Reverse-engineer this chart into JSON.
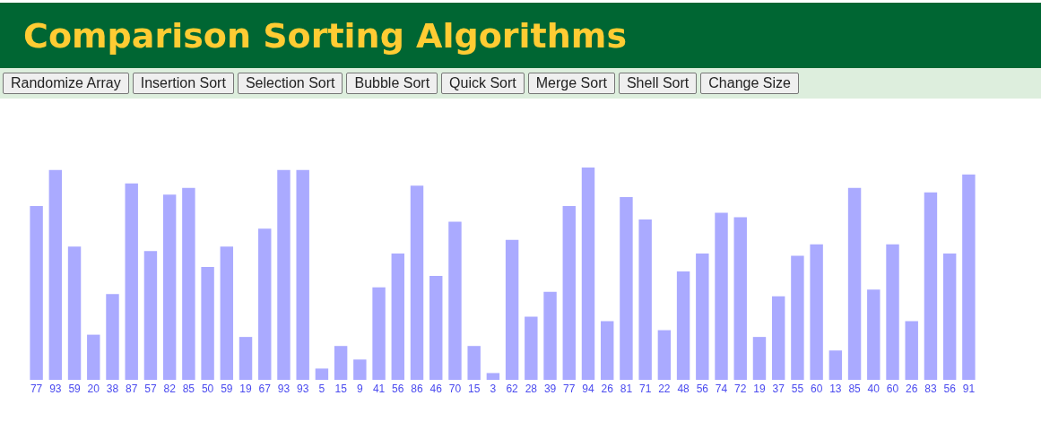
{
  "chart_data": {
    "type": "bar",
    "title": "Comparison Sorting Algorithms",
    "annotations": [
      "Randomize Array",
      "Insertion Sort",
      "Selection Sort",
      "Bubble Sort",
      "Quick Sort",
      "Merge Sort",
      "Shell Sort",
      "Change Size"
    ],
    "categories": [
      null,
      null,
      null,
      null,
      null,
      null,
      null,
      null,
      null,
      null,
      null,
      null,
      null,
      null,
      null,
      null,
      null,
      null,
      null,
      null,
      null,
      null,
      null,
      null,
      null,
      null,
      null,
      null,
      null,
      null,
      null,
      null,
      null,
      null,
      null,
      null,
      null,
      null,
      null,
      null,
      null,
      null,
      null,
      null,
      null,
      null,
      null,
      null,
      null,
      null
    ],
    "values": [
      77,
      93,
      59,
      20,
      38,
      87,
      57,
      82,
      85,
      50,
      59,
      19,
      67,
      93,
      93,
      5,
      15,
      9,
      41,
      56,
      86,
      46,
      70,
      15,
      3,
      62,
      28,
      39,
      77,
      94,
      26,
      81,
      71,
      22,
      48,
      56,
      74,
      72,
      19,
      37,
      55,
      60,
      13,
      85,
      40,
      60,
      26,
      83,
      56,
      91
    ],
    "color": "#aaaaff",
    "data_labels": true
  }
}
